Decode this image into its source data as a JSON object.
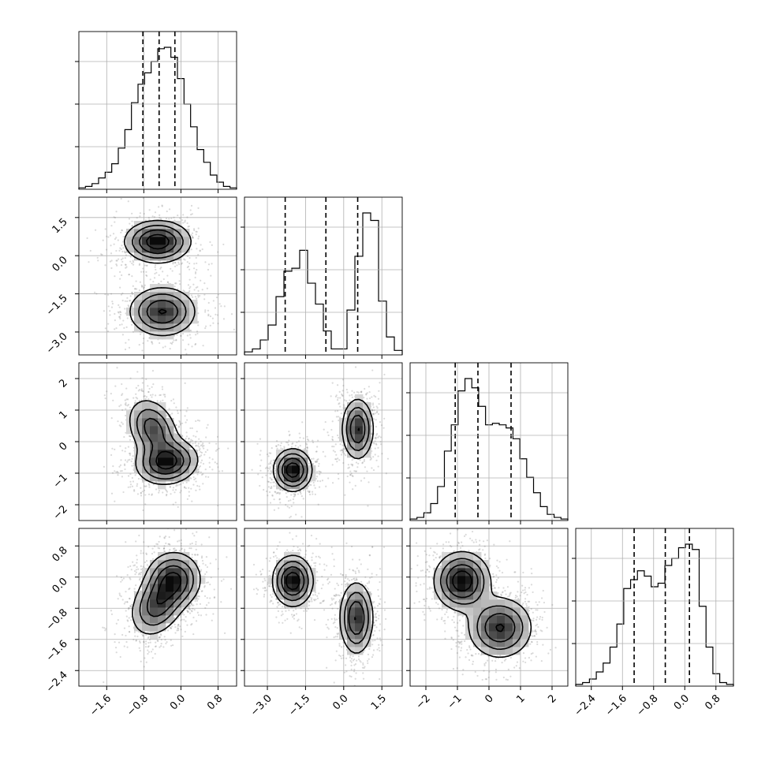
{
  "chart_data": {
    "type": "corner",
    "title": "",
    "grid": true,
    "parameters": [
      {
        "range": [
          -2.2,
          1.2
        ],
        "ticks": [
          -1.6,
          -0.8,
          0.0,
          0.8
        ],
        "tick_labels": [
          "−1.6",
          "−0.8",
          "0.0",
          "0.8"
        ],
        "quantiles": [
          -0.82,
          -0.47,
          -0.13
        ],
        "hist_counts": [
          0.01,
          0.02,
          0.04,
          0.08,
          0.12,
          0.18,
          0.29,
          0.42,
          0.61,
          0.74,
          0.82,
          0.9,
          0.99,
          1.0,
          0.93,
          0.78,
          0.6,
          0.44,
          0.28,
          0.19,
          0.1,
          0.05,
          0.02,
          0.01
        ]
      },
      {
        "range": [
          -3.9,
          2.3
        ],
        "ticks": [
          -3.0,
          -1.5,
          0.0,
          1.5
        ],
        "tick_labels": [
          "−3.0",
          "−1.5",
          "0.0",
          "1.5"
        ],
        "quantiles": [
          -2.3,
          -0.7,
          0.55
        ],
        "hist_counts": [
          0.02,
          0.04,
          0.1,
          0.2,
          0.39,
          0.56,
          0.58,
          0.7,
          0.48,
          0.34,
          0.16,
          0.04,
          0.04,
          0.3,
          0.66,
          0.95,
          0.9,
          0.36,
          0.12,
          0.03
        ]
      },
      {
        "range": [
          -2.5,
          2.5
        ],
        "ticks": [
          -2,
          -1,
          0,
          1,
          2
        ],
        "tick_labels": [
          "−2",
          "−1",
          "0",
          "1",
          "2"
        ],
        "quantiles": [
          -1.07,
          -0.35,
          0.7
        ],
        "hist_counts": [
          0.01,
          0.02,
          0.05,
          0.11,
          0.22,
          0.45,
          0.62,
          0.84,
          0.92,
          0.86,
          0.74,
          0.62,
          0.63,
          0.62,
          0.6,
          0.53,
          0.4,
          0.28,
          0.18,
          0.09,
          0.04,
          0.02,
          0.01
        ]
      },
      {
        "range": [
          -2.8,
          1.25
        ],
        "ticks": [
          -2.4,
          -1.6,
          -0.8,
          0.0,
          0.8
        ],
        "tick_labels": [
          "−2.4",
          "−1.6",
          "−0.8",
          "0.0",
          "0.8"
        ],
        "quantiles": [
          -1.3,
          -0.5,
          0.12
        ],
        "hist_counts": [
          0.01,
          0.02,
          0.04,
          0.08,
          0.13,
          0.22,
          0.35,
          0.55,
          0.6,
          0.65,
          0.62,
          0.56,
          0.58,
          0.68,
          0.72,
          0.78,
          0.8,
          0.77,
          0.45,
          0.22,
          0.07,
          0.02,
          0.01
        ]
      }
    ],
    "pairs": [
      {
        "x": 0,
        "y": 1,
        "components": [
          {
            "mx": -0.5,
            "my": 0.55,
            "sx": 0.36,
            "sy": 0.42,
            "rho": 0.0,
            "w": 0.5
          },
          {
            "mx": -0.4,
            "my": -2.2,
            "sx": 0.37,
            "sy": 0.5,
            "rho": 0.0,
            "w": 0.5
          }
        ]
      },
      {
        "x": 0,
        "y": 2,
        "components": [
          {
            "mx": -0.6,
            "my": 0.4,
            "sx": 0.28,
            "sy": 0.5,
            "rho": -0.3,
            "w": 0.45
          },
          {
            "mx": -0.3,
            "my": -0.65,
            "sx": 0.34,
            "sy": 0.36,
            "rho": 0.1,
            "w": 0.55
          }
        ]
      },
      {
        "x": 1,
        "y": 2,
        "components": [
          {
            "mx": -2.0,
            "my": -0.9,
            "sx": 0.38,
            "sy": 0.34,
            "rho": 0.0,
            "w": 0.5
          },
          {
            "mx": 0.55,
            "my": 0.4,
            "sx": 0.32,
            "sy": 0.5,
            "rho": 0.0,
            "w": 0.5
          }
        ]
      },
      {
        "x": 0,
        "y": 3,
        "components": [
          {
            "mx": -0.5,
            "my": -0.7,
            "sx": 0.3,
            "sy": 0.42,
            "rho": 0.3,
            "w": 0.5
          },
          {
            "mx": -0.15,
            "my": -0.05,
            "sx": 0.3,
            "sy": 0.36,
            "rho": 0.0,
            "w": 0.5
          }
        ]
      },
      {
        "x": 1,
        "y": 3,
        "components": [
          {
            "mx": -2.0,
            "my": -0.1,
            "sx": 0.4,
            "sy": 0.33,
            "rho": 0.0,
            "w": 0.5
          },
          {
            "mx": 0.5,
            "my": -1.05,
            "sx": 0.34,
            "sy": 0.48,
            "rho": 0.0,
            "w": 0.5
          }
        ]
      },
      {
        "x": 2,
        "y": 3,
        "components": [
          {
            "mx": -0.85,
            "my": -0.1,
            "sx": 0.45,
            "sy": 0.38,
            "rho": 0.0,
            "w": 0.5
          },
          {
            "mx": 0.35,
            "my": -1.3,
            "sx": 0.52,
            "sy": 0.4,
            "rho": 0.0,
            "w": 0.5
          }
        ]
      }
    ]
  }
}
